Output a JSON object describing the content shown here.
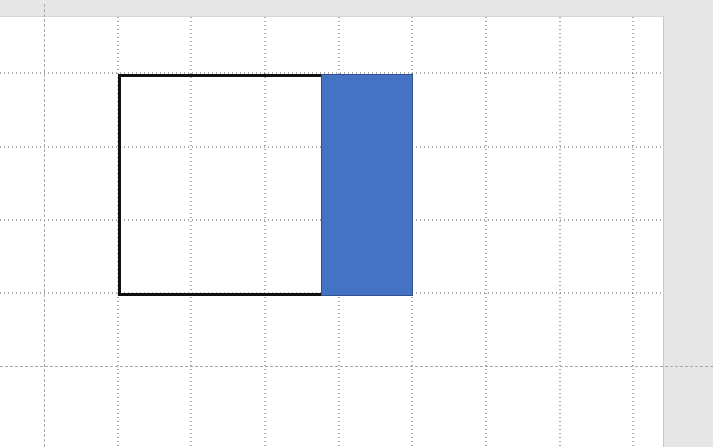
{
  "canvas": {
    "workspace_color": "#e6e6e6",
    "slide_color": "#ffffff",
    "grid_color": "#555555",
    "guide_color": "#a9a9a9"
  },
  "shapes": {
    "outline_rect": {
      "stroke_color": "#111111",
      "fill": "none"
    },
    "filled_rect": {
      "fill_color": "#4472c4",
      "stroke_color": "#2f528f"
    }
  }
}
